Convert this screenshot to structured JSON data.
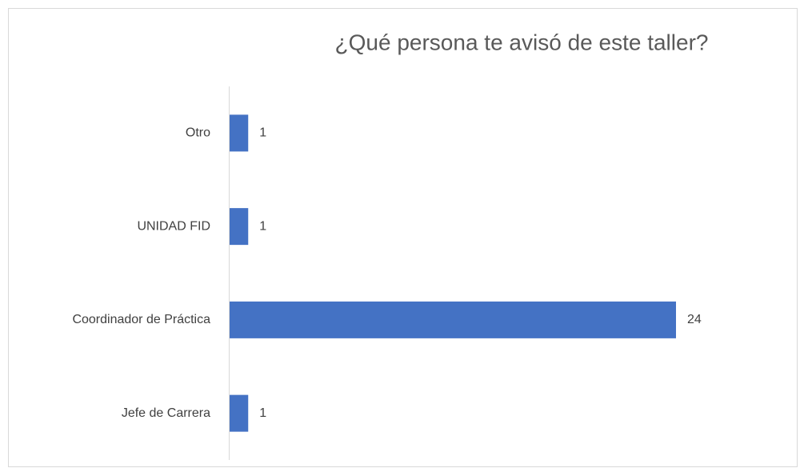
{
  "chart_data": {
    "type": "barh",
    "title": "¿Qué persona te avisó de este taller?",
    "categories": [
      "Otro",
      "UNIDAD FID",
      "Coordinador de Práctica",
      "Jefe de Carrera"
    ],
    "values": [
      1,
      1,
      24,
      1
    ],
    "color": "#4472c4"
  }
}
